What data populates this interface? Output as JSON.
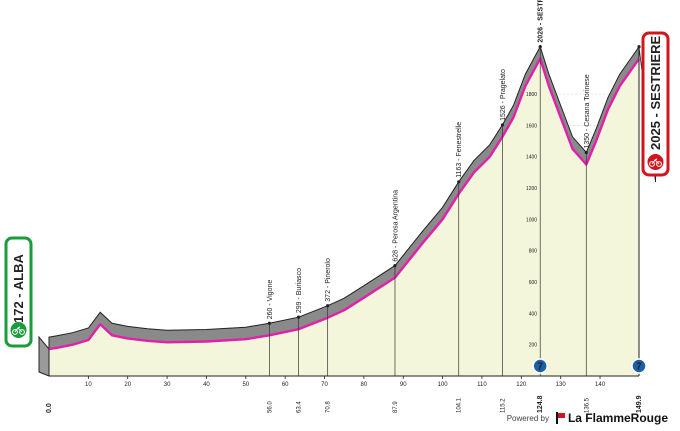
{
  "stage": {
    "start": {
      "km_label": "172",
      "name": "ALBA"
    },
    "finish": {
      "km_label": "2025",
      "name": "SESTRIERE"
    }
  },
  "waypoints": [
    {
      "alt": "260",
      "name": "Vigone",
      "km_label": "56.0",
      "km": 56.0
    },
    {
      "alt": "299",
      "name": "Buriasco",
      "km_label": "63.4",
      "km": 63.4
    },
    {
      "alt": "372",
      "name": "Pinerolo",
      "km_label": "70.8",
      "km": 70.8
    },
    {
      "alt": "628",
      "name": "Perosa Argentina",
      "km_label": "87.9",
      "km": 87.9
    },
    {
      "alt": "1163",
      "name": "Fenestrelle",
      "km_label": "104.1",
      "km": 104.1
    },
    {
      "alt": "1526",
      "name": "Pragelato",
      "km_label": "115.2",
      "km": 115.2
    },
    {
      "alt": "2026",
      "name": "SESTRIERE",
      "km_label": "124.8",
      "km": 124.8
    },
    {
      "alt": "1350",
      "name": "Cesana Torinese",
      "km_label": "136.5",
      "km": 136.5
    },
    {
      "alt": "2025",
      "name": "SESTRIERE",
      "km_label": "149.9",
      "km": 149.9
    }
  ],
  "km_bottom_labels": [
    "0.0",
    "56.0",
    "63.4",
    "70.8",
    "87.9",
    "104.1",
    "115.2",
    "124.8",
    "136.5",
    "149.9"
  ],
  "chart_data": {
    "type": "area",
    "x": [
      0,
      2,
      6,
      10,
      13,
      16,
      20,
      25,
      30,
      40,
      50,
      56,
      63.4,
      70.8,
      75,
      80,
      87.9,
      95,
      100,
      104.1,
      108,
      112,
      115.2,
      118,
      121,
      124.8,
      127,
      130,
      133,
      136.5,
      139,
      142,
      145,
      149.9
    ],
    "y": [
      172,
      180,
      200,
      230,
      330,
      260,
      240,
      225,
      215,
      220,
      235,
      260,
      299,
      372,
      420,
      500,
      628,
      850,
      1000,
      1163,
      1300,
      1400,
      1526,
      1650,
      1850,
      2026,
      1850,
      1650,
      1450,
      1350,
      1500,
      1700,
      1850,
      2025
    ],
    "x_ticks": [
      10,
      20,
      30,
      40,
      50,
      60,
      70,
      80,
      90,
      100,
      110,
      120,
      130,
      140
    ],
    "y_ticks": [
      200,
      400,
      600,
      800,
      1000,
      1200,
      1400,
      1600,
      1800
    ],
    "xlim": [
      0,
      149.9
    ],
    "ylim": [
      0,
      2400
    ],
    "colors": {
      "fill": "#f4f6dc",
      "ridge": "#8a8a8a",
      "line": "#e21fa8",
      "grid": "#c8c8c8",
      "badge_green": "#1a9b3c",
      "badge_red": "#d2141e",
      "marker_blue": "#1b5fa6"
    }
  },
  "kom_markers": [
    {
      "km": 124.8,
      "label": "7"
    },
    {
      "km": 149.9,
      "label": "7"
    }
  ],
  "footer": {
    "powered": "Powered by",
    "brand": "La FlammeRouge"
  }
}
